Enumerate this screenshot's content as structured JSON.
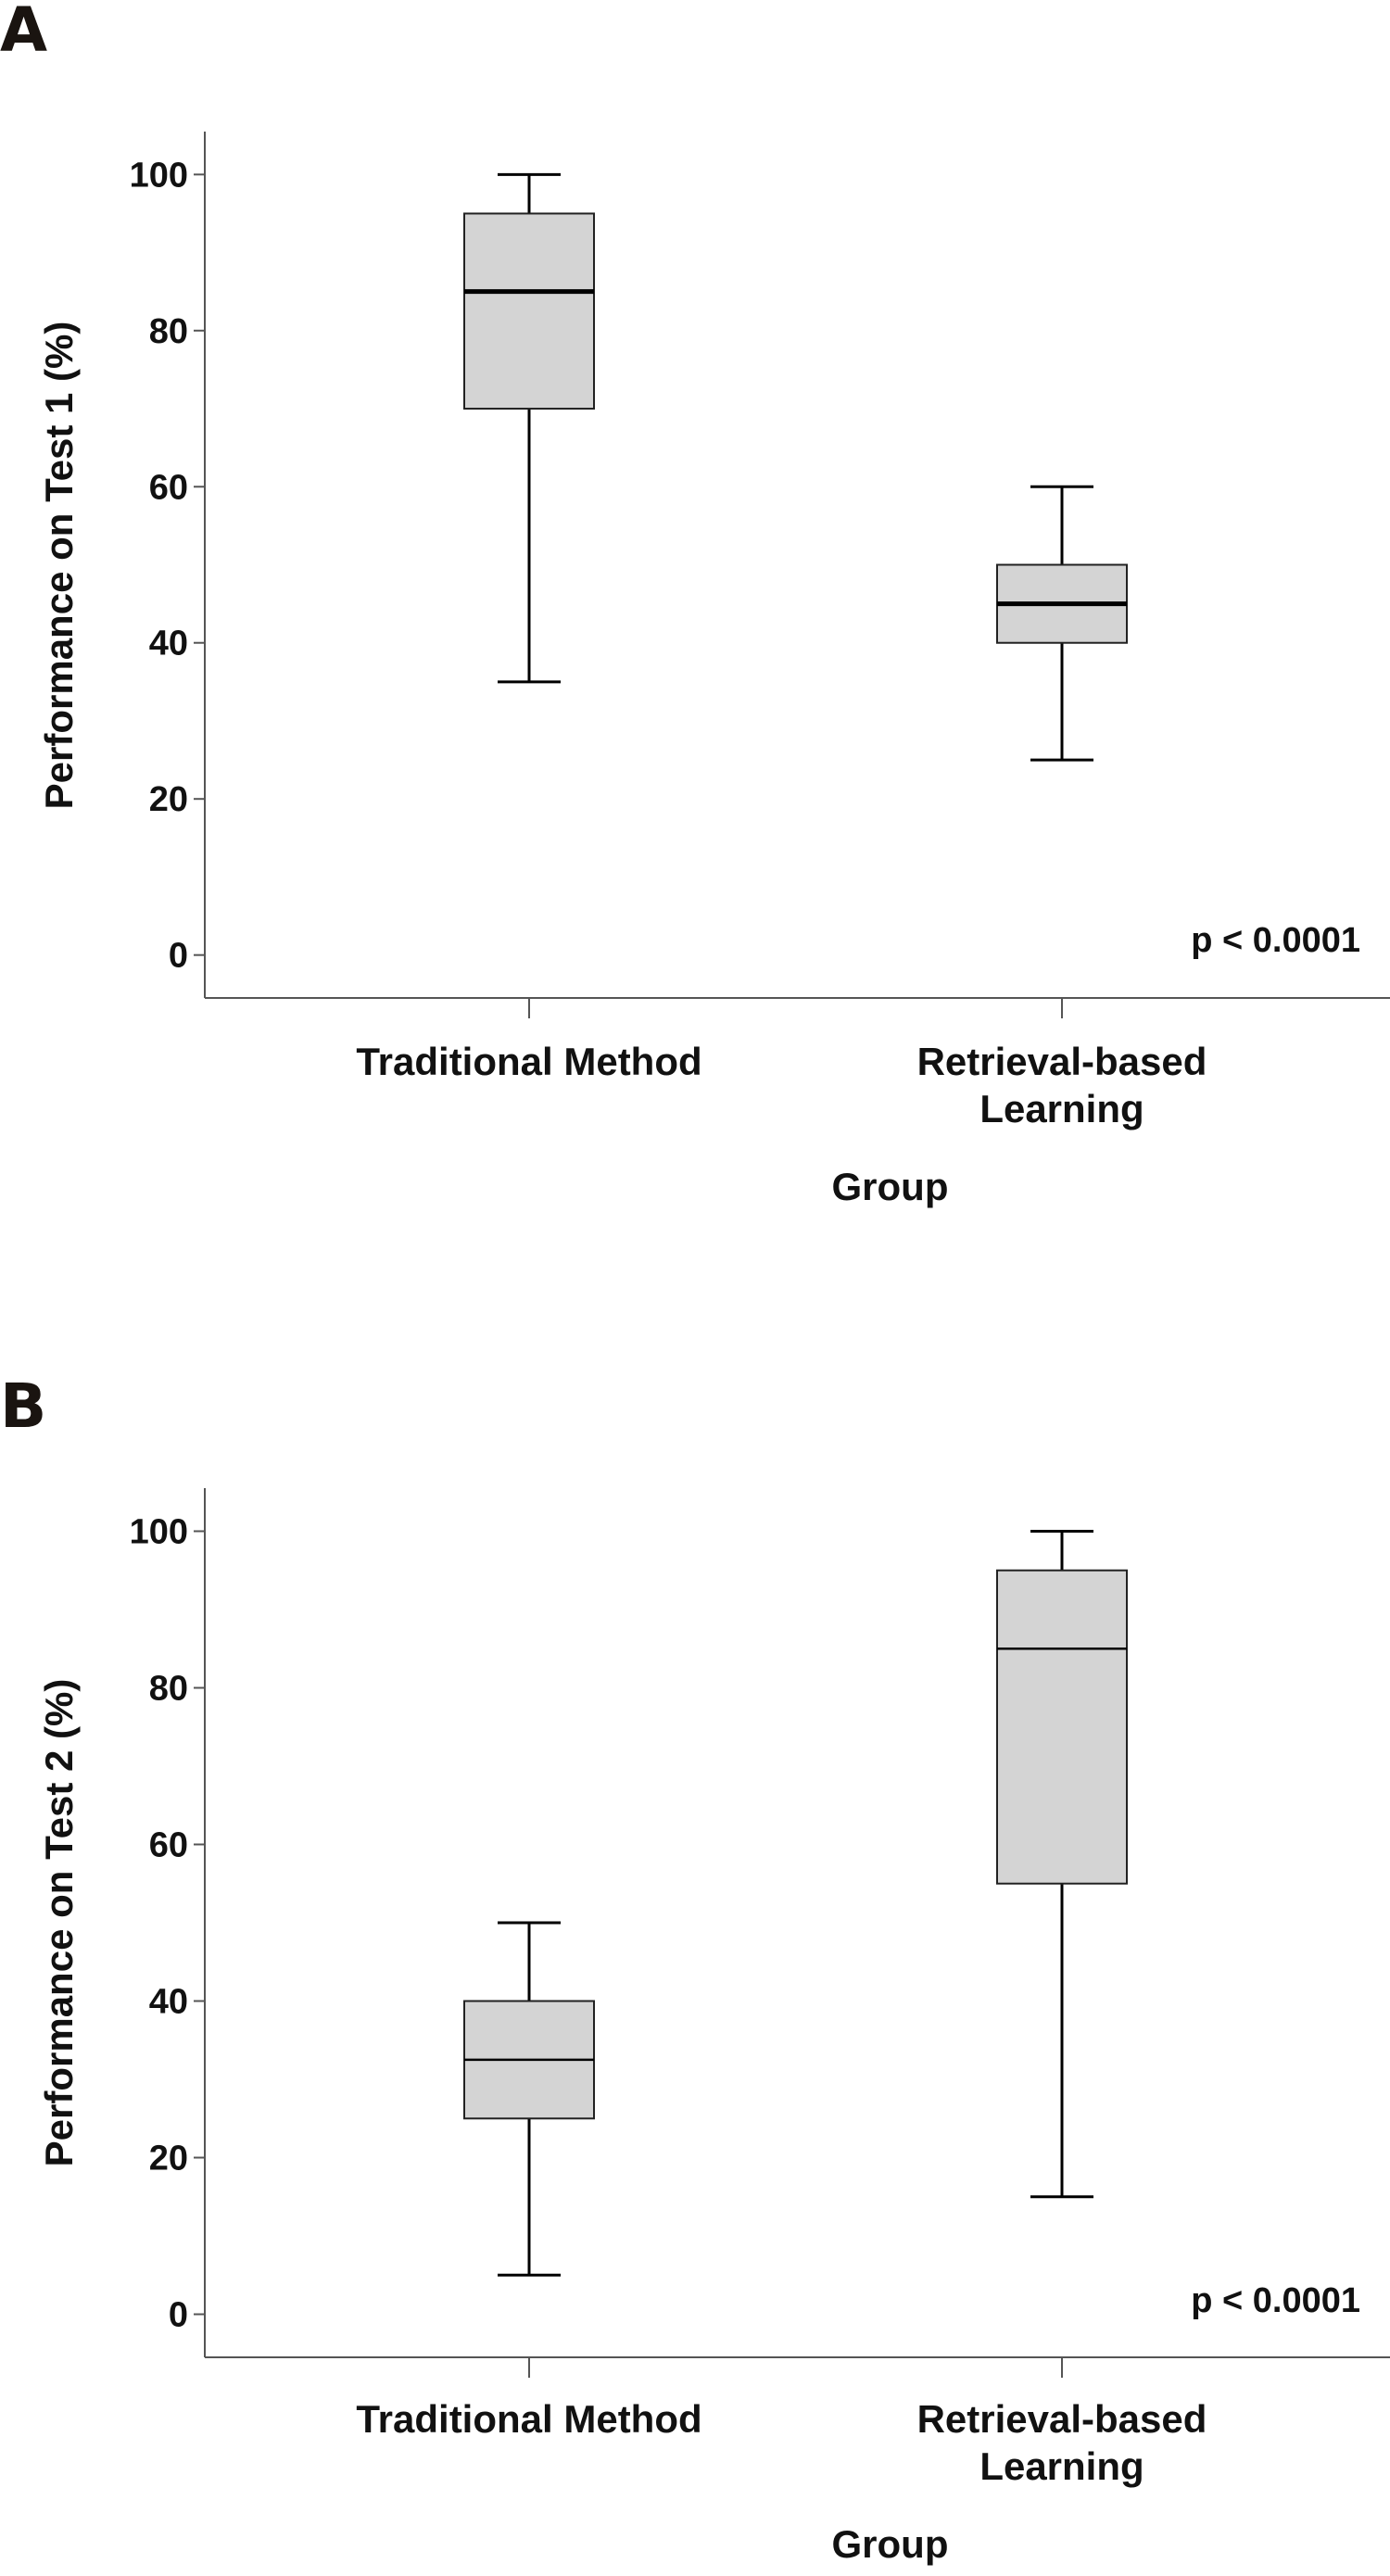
{
  "chart_data": [
    {
      "type": "boxplot",
      "panel_label": "A",
      "xlabel": "Group",
      "ylabel": "Performance on Test 1 (%)",
      "categories": [
        [
          "Traditional Method"
        ],
        [
          "Retrieval-based",
          "Learning"
        ]
      ],
      "yticks": [
        0,
        20,
        40,
        60,
        80,
        100
      ],
      "ylim": [
        -5.5,
        105.5
      ],
      "annotation": "p < 0.0001",
      "grid": false,
      "box_color": "#d4d4d4",
      "boxes": [
        {
          "min": 35,
          "q1": 70,
          "median": 85,
          "q3": 95,
          "max": 100
        },
        {
          "min": 25,
          "q1": 40,
          "median": 45,
          "q3": 50,
          "max": 60
        }
      ]
    },
    {
      "type": "boxplot",
      "panel_label": "B",
      "xlabel": "Group",
      "ylabel": "Performance on Test 2 (%)",
      "categories": [
        [
          "Traditional Method"
        ],
        [
          "Retrieval-based",
          "Learning"
        ]
      ],
      "yticks": [
        0,
        20,
        40,
        60,
        80,
        100
      ],
      "ylim": [
        -5.5,
        105.5
      ],
      "annotation": "p < 0.0001",
      "grid": false,
      "box_color": "#d4d4d4",
      "boxes": [
        {
          "min": 5,
          "q1": 25,
          "median": 32.5,
          "q3": 40,
          "max": 50
        },
        {
          "min": 15,
          "q1": 55,
          "median": 85,
          "q3": 95,
          "max": 100
        }
      ]
    }
  ]
}
